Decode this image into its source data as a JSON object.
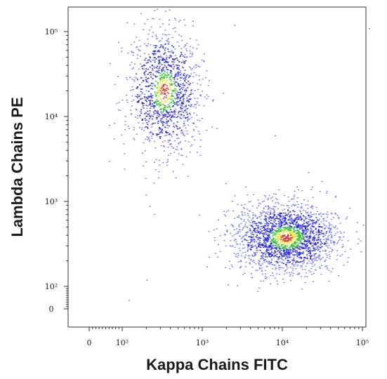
{
  "chart_data": {
    "type": "scatter",
    "title": "",
    "xlabel": "Kappa Chains FITC",
    "ylabel": "Lambda Chains PE",
    "x_scale": "biexponential",
    "y_scale": "biexponential",
    "grid": false,
    "legend": "none",
    "x_ticks": [
      {
        "value": 0,
        "label": "0"
      },
      {
        "value": 100,
        "label": "10²"
      },
      {
        "value": 1000,
        "label": "10³"
      },
      {
        "value": 10000,
        "label": "10⁴"
      },
      {
        "value": 100000,
        "label": "10⁵"
      }
    ],
    "y_ticks": [
      {
        "value": 0,
        "label": "0"
      },
      {
        "value": 100,
        "label": "10²"
      },
      {
        "value": 1000,
        "label": "10³"
      },
      {
        "value": 10000,
        "label": "10⁴"
      },
      {
        "value": 100000,
        "label": "10⁵"
      }
    ],
    "populations": [
      {
        "x_center": 330,
        "y_center": 20000,
        "x_log_spread": 0.22,
        "y_log_spread": 0.36,
        "points": 1300
      },
      {
        "x_center": 11000,
        "y_center": 380,
        "x_log_spread": 0.32,
        "y_log_spread": 0.2,
        "points": 2100
      }
    ],
    "density_colors": [
      "#2222dd",
      "#7d7dff",
      "#40c040",
      "#e8e830",
      "#e03030"
    ]
  }
}
